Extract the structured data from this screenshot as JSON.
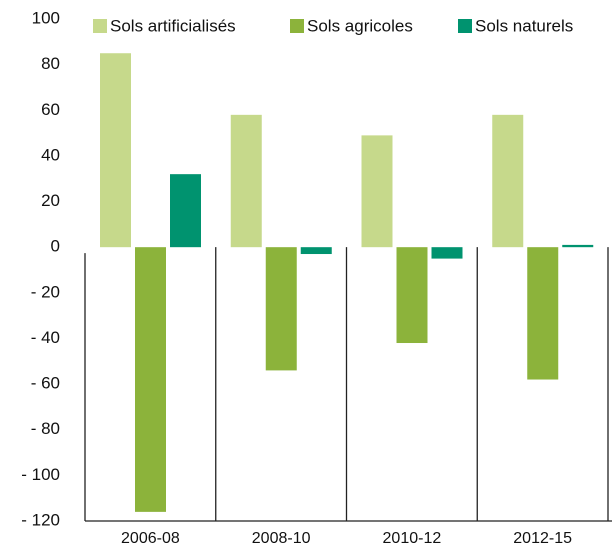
{
  "chart_data": {
    "type": "bar",
    "categories": [
      "2006-08",
      "2008-10",
      "2010-12",
      "2012-15"
    ],
    "series": [
      {
        "name": "Sols artificialisés",
        "color": "#c6d98b",
        "values": [
          85,
          58,
          49,
          58
        ]
      },
      {
        "name": "Sols agricoles",
        "color": "#8cb33b",
        "values": [
          -116,
          -54,
          -42,
          -58
        ]
      },
      {
        "name": "Sols naturels",
        "color": "#00936f",
        "values": [
          32,
          -3,
          -5,
          1
        ]
      }
    ],
    "ylim": [
      -120,
      100
    ],
    "yticks": [
      {
        "value": -120,
        "label": "- 120"
      },
      {
        "value": -100,
        "label": "- 100"
      },
      {
        "value": -80,
        "label": "- 80"
      },
      {
        "value": -60,
        "label": "- 60"
      },
      {
        "value": -40,
        "label": "- 40"
      },
      {
        "value": -20,
        "label": "- 20"
      },
      0,
      20,
      40,
      60,
      80,
      100
    ],
    "grid": false
  }
}
